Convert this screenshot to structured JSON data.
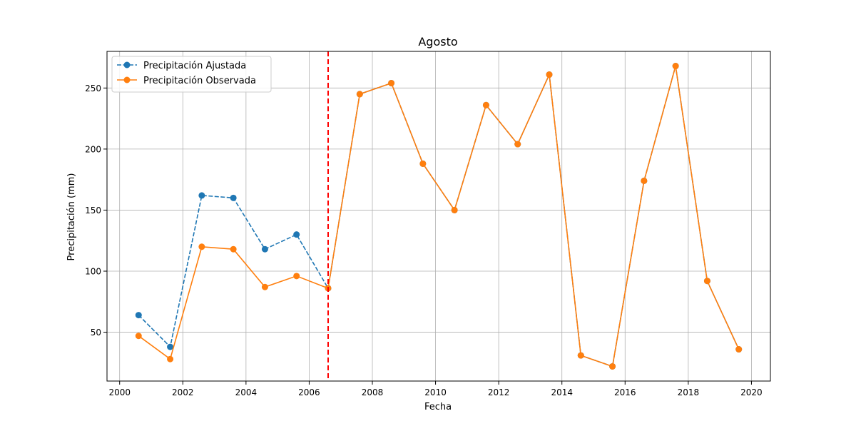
{
  "chart_data": {
    "type": "line",
    "title": "Agosto",
    "xlabel": "Fecha",
    "ylabel": "Precipitación (mm)",
    "xlim": [
      1999.6,
      2020.6
    ],
    "ylim": [
      10,
      280
    ],
    "x_ticks": [
      2000,
      2002,
      2004,
      2006,
      2008,
      2010,
      2012,
      2014,
      2016,
      2018,
      2020
    ],
    "y_ticks": [
      50,
      100,
      150,
      200,
      250
    ],
    "x_tick_labels": [
      "2000",
      "2002",
      "2004",
      "2006",
      "2008",
      "2010",
      "2012",
      "2014",
      "2016",
      "2018",
      "2020"
    ],
    "y_tick_labels": [
      "50",
      "100",
      "150",
      "200",
      "250"
    ],
    "grid": true,
    "legend_position": "top-left",
    "x": [
      2000.6,
      2001.6,
      2002.6,
      2003.6,
      2004.6,
      2005.6,
      2006.6,
      2007.6,
      2008.6,
      2009.6,
      2010.6,
      2011.6,
      2012.6,
      2013.6,
      2014.6,
      2015.6,
      2016.6,
      2017.6,
      2018.6,
      2019.6
    ],
    "series": [
      {
        "name": "Precipitación Ajustada",
        "color": "#1f77b4",
        "linestyle": "dashed",
        "marker": "circle",
        "values": [
          64,
          38,
          162,
          160,
          118,
          130,
          86,
          245,
          254,
          188,
          150,
          236,
          204,
          261,
          31,
          22,
          174,
          268,
          92,
          36
        ]
      },
      {
        "name": "Precipitación Observada",
        "color": "#ff7f0e",
        "linestyle": "solid",
        "marker": "circle",
        "values": [
          47,
          28,
          120,
          118,
          87,
          96,
          86,
          245,
          254,
          188,
          150,
          236,
          204,
          261,
          31,
          22,
          174,
          268,
          92,
          36
        ]
      }
    ],
    "vertical_line": {
      "x": 2006.6,
      "color": "#ff0000",
      "linestyle": "dashed"
    }
  }
}
